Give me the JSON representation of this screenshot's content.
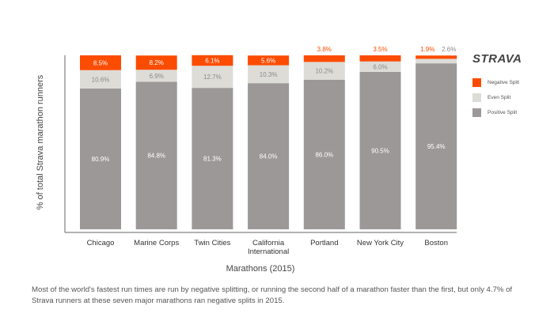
{
  "brand": {
    "logo": "STRAVA",
    "color": "#fc4c02"
  },
  "caption": "Most of the world's fastest run times are run by negative splitting, or running the second half of a marathon faster than the first, but only 4.7% of Strava runners at these seven major marathons ran negative splits in 2015.",
  "chart_data": {
    "type": "bar",
    "stacked": true,
    "title": "",
    "xlabel": "Marathons (2015)",
    "ylabel": "% of total Strava marathon runners",
    "ylim": [
      0,
      100
    ],
    "grid": false,
    "legend_position": "right",
    "categories": [
      "Chicago",
      "Marine Corps",
      "Twin Cities",
      "California International",
      "Portland",
      "New York City",
      "Boston"
    ],
    "series": [
      {
        "name": "Positive Split",
        "color": "#9b9897",
        "values": [
          80.9,
          84.8,
          81.3,
          84.0,
          86.0,
          90.5,
          95.4
        ],
        "labels": [
          "80.9%",
          "84.8%",
          "81.3%",
          "84.0%",
          "86.0%",
          "90.5%",
          "95.4%"
        ]
      },
      {
        "name": "Even Split",
        "color": "#dddcd7",
        "values": [
          10.6,
          6.9,
          12.7,
          10.3,
          10.2,
          6.0,
          2.6
        ],
        "labels": [
          "10.6%",
          "6.9%",
          "12.7%",
          "10.3%",
          "10.2%",
          "6.0%",
          "2.6%"
        ]
      },
      {
        "name": "Negative Split",
        "color": "#fc4c02",
        "values": [
          8.5,
          8.2,
          6.1,
          5.6,
          3.8,
          3.5,
          1.9
        ],
        "labels": [
          "8.5%",
          "8.2%",
          "6.1%",
          "5.6%",
          "3.8%",
          "3.5%",
          "1.9%"
        ]
      }
    ],
    "legend": [
      "Negative Split",
      "Even Split",
      "Positive Split"
    ]
  }
}
